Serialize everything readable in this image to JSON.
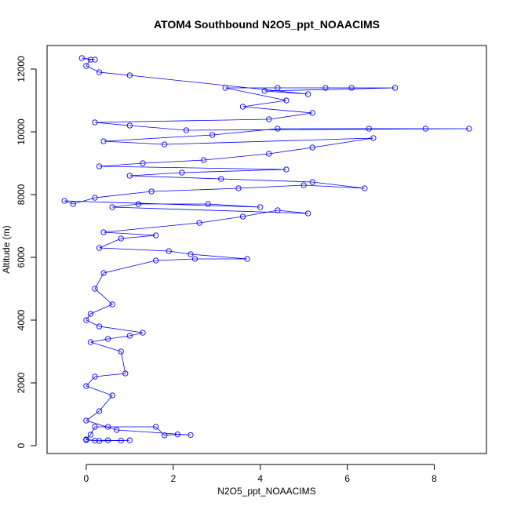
{
  "chart_data": {
    "type": "scatter",
    "title": "ATOM4 Southbound N2O5_ppt_NOAACIMS",
    "xlabel": "N2O5_ppt_NOAACIMS",
    "ylabel": "Altitude (m)",
    "xlim": [
      -0.9,
      9.2
    ],
    "ylim": [
      -250,
      12750
    ],
    "xticks": [
      0,
      2,
      4,
      6,
      8
    ],
    "yticks": [
      0,
      2000,
      4000,
      6000,
      8000,
      10000,
      12000
    ],
    "marker": "open-circle",
    "connected": true,
    "grid": false,
    "series": [
      {
        "color": "#0000ff",
        "points": [
          [
            0.0,
            180
          ],
          [
            0.2,
            160
          ],
          [
            0.5,
            170
          ],
          [
            0.8,
            160
          ],
          [
            1.0,
            170
          ],
          [
            0.3,
            150
          ],
          [
            0.0,
            200
          ],
          [
            0.1,
            350
          ],
          [
            0.2,
            600
          ],
          [
            0.5,
            600
          ],
          [
            1.6,
            600
          ],
          [
            1.8,
            330
          ],
          [
            2.1,
            360
          ],
          [
            2.4,
            340
          ],
          [
            0.7,
            500
          ],
          [
            0.0,
            800
          ],
          [
            0.3,
            1100
          ],
          [
            0.6,
            1600
          ],
          [
            0.0,
            1900
          ],
          [
            0.2,
            2200
          ],
          [
            0.9,
            2300
          ],
          [
            0.8,
            3000
          ],
          [
            0.1,
            3300
          ],
          [
            0.5,
            3400
          ],
          [
            1.0,
            3500
          ],
          [
            1.3,
            3600
          ],
          [
            0.3,
            3800
          ],
          [
            0.0,
            4000
          ],
          [
            0.1,
            4200
          ],
          [
            0.6,
            4500
          ],
          [
            0.2,
            5000
          ],
          [
            0.4,
            5500
          ],
          [
            1.6,
            5900
          ],
          [
            2.5,
            5950
          ],
          [
            3.7,
            5950
          ],
          [
            2.4,
            6100
          ],
          [
            1.9,
            6200
          ],
          [
            0.3,
            6300
          ],
          [
            0.8,
            6600
          ],
          [
            1.6,
            6700
          ],
          [
            0.4,
            6800
          ],
          [
            2.6,
            7100
          ],
          [
            3.6,
            7300
          ],
          [
            4.4,
            7500
          ],
          [
            5.1,
            7400
          ],
          [
            0.6,
            7600
          ],
          [
            1.2,
            7700
          ],
          [
            2.8,
            7700
          ],
          [
            4.0,
            7600
          ],
          [
            -0.5,
            7800
          ],
          [
            -0.3,
            7700
          ],
          [
            0.2,
            7900
          ],
          [
            1.5,
            8100
          ],
          [
            3.5,
            8200
          ],
          [
            5.0,
            8300
          ],
          [
            6.4,
            8200
          ],
          [
            5.2,
            8400
          ],
          [
            3.1,
            8500
          ],
          [
            1.0,
            8600
          ],
          [
            2.2,
            8700
          ],
          [
            4.6,
            8800
          ],
          [
            0.3,
            8900
          ],
          [
            1.3,
            9000
          ],
          [
            2.7,
            9100
          ],
          [
            4.2,
            9300
          ],
          [
            5.2,
            9500
          ],
          [
            6.6,
            9800
          ],
          [
            1.8,
            9600
          ],
          [
            0.4,
            9700
          ],
          [
            2.9,
            9900
          ],
          [
            4.4,
            10100
          ],
          [
            6.5,
            10100
          ],
          [
            7.8,
            10100
          ],
          [
            8.8,
            10100
          ],
          [
            2.3,
            10050
          ],
          [
            1.0,
            10200
          ],
          [
            0.2,
            10300
          ],
          [
            4.2,
            10400
          ],
          [
            5.2,
            10600
          ],
          [
            3.6,
            10800
          ],
          [
            4.6,
            11000
          ],
          [
            3.2,
            11400
          ],
          [
            4.4,
            11400
          ],
          [
            5.5,
            11400
          ],
          [
            6.1,
            11400
          ],
          [
            7.1,
            11400
          ],
          [
            4.1,
            11300
          ],
          [
            5.1,
            11200
          ],
          [
            1.0,
            11800
          ],
          [
            0.3,
            11900
          ],
          [
            0.0,
            12100
          ],
          [
            0.1,
            12300
          ],
          [
            -0.1,
            12350
          ],
          [
            0.2,
            12300
          ]
        ]
      }
    ]
  }
}
